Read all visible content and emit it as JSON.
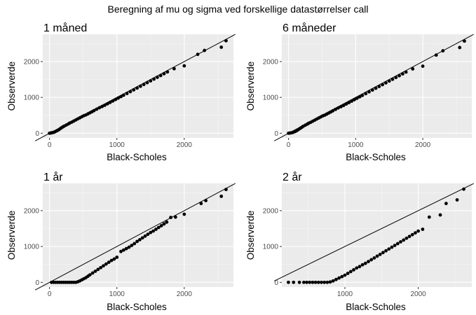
{
  "figure": {
    "title": "Beregning af mu og sigma ved forskellige datastørrelser call"
  },
  "chart_data": [
    {
      "type": "scatter",
      "title": "1 måned",
      "xlabel": "Black-Scholes",
      "ylabel": "Observerde",
      "xlim": [
        -100,
        2730
      ],
      "ylim": [
        -130,
        2760
      ],
      "xticks": [
        0,
        1000,
        2000
      ],
      "yticks": [
        0,
        1000,
        2000
      ],
      "reference_line": {
        "intercept": 0,
        "slope": 1
      },
      "grid": true,
      "x": [
        0,
        20,
        40,
        60,
        80,
        100,
        120,
        140,
        160,
        180,
        200,
        220,
        250,
        280,
        300,
        330,
        360,
        390,
        420,
        450,
        480,
        510,
        540,
        570,
        600,
        630,
        660,
        700,
        740,
        780,
        820,
        860,
        900,
        940,
        980,
        1020,
        1060,
        1100,
        1150,
        1200,
        1250,
        1300,
        1350,
        1400,
        1450,
        1500,
        1550,
        1600,
        1650,
        1700,
        1750,
        1850,
        2000,
        2200,
        2300,
        2550,
        2620
      ],
      "y": [
        0,
        8,
        15,
        25,
        40,
        60,
        80,
        100,
        130,
        155,
        180,
        200,
        230,
        260,
        285,
        310,
        340,
        370,
        400,
        430,
        460,
        490,
        510,
        540,
        570,
        600,
        630,
        670,
        710,
        745,
        780,
        820,
        860,
        900,
        940,
        980,
        1020,
        1060,
        1110,
        1160,
        1210,
        1260,
        1310,
        1360,
        1410,
        1460,
        1510,
        1560,
        1610,
        1660,
        1710,
        1800,
        1880,
        2200,
        2310,
        2400,
        2580
      ]
    },
    {
      "type": "scatter",
      "title": "6 måneder",
      "xlabel": "Black-Scholes",
      "ylabel": "Observerde",
      "xlim": [
        -100,
        2730
      ],
      "ylim": [
        -130,
        2760
      ],
      "xticks": [
        0,
        1000,
        2000
      ],
      "yticks": [
        0,
        1000,
        2000
      ],
      "reference_line": {
        "intercept": 0,
        "slope": 1
      },
      "grid": true,
      "x": [
        0,
        20,
        40,
        60,
        80,
        100,
        120,
        140,
        160,
        180,
        200,
        220,
        250,
        280,
        300,
        330,
        360,
        390,
        420,
        450,
        480,
        510,
        540,
        570,
        600,
        630,
        660,
        700,
        740,
        780,
        820,
        860,
        900,
        940,
        980,
        1020,
        1060,
        1100,
        1150,
        1200,
        1250,
        1300,
        1350,
        1400,
        1450,
        1500,
        1550,
        1600,
        1650,
        1700,
        1750,
        1850,
        2000,
        2200,
        2300,
        2550,
        2620
      ],
      "y": [
        0,
        5,
        12,
        20,
        35,
        50,
        70,
        95,
        120,
        145,
        170,
        195,
        225,
        255,
        280,
        305,
        335,
        365,
        395,
        425,
        455,
        485,
        505,
        535,
        565,
        595,
        625,
        665,
        705,
        740,
        775,
        815,
        855,
        895,
        935,
        975,
        1015,
        1055,
        1105,
        1155,
        1205,
        1255,
        1305,
        1355,
        1405,
        1455,
        1505,
        1555,
        1605,
        1655,
        1705,
        1795,
        1870,
        2180,
        2300,
        2390,
        2570
      ]
    },
    {
      "type": "scatter",
      "title": "1 år",
      "xlabel": "Black-Scholes",
      "ylabel": "Observerde",
      "xlim": [
        -100,
        2730
      ],
      "ylim": [
        -130,
        2760
      ],
      "xticks": [
        0,
        1000,
        2000
      ],
      "yticks": [
        0,
        1000,
        2000
      ],
      "reference_line": {
        "intercept": 0,
        "slope": 1
      },
      "grid": true,
      "x": [
        30,
        60,
        90,
        120,
        150,
        180,
        210,
        240,
        270,
        300,
        330,
        360,
        390,
        420,
        450,
        480,
        510,
        540,
        570,
        600,
        640,
        680,
        720,
        760,
        800,
        840,
        880,
        920,
        960,
        1000,
        1060,
        1100,
        1140,
        1180,
        1220,
        1260,
        1300,
        1340,
        1380,
        1420,
        1460,
        1500,
        1540,
        1580,
        1620,
        1660,
        1700,
        1740,
        1800,
        1870,
        2000,
        2250,
        2320,
        2550,
        2620
      ],
      "y": [
        0,
        0,
        0,
        0,
        0,
        0,
        0,
        0,
        0,
        0,
        0,
        0,
        0,
        15,
        40,
        70,
        100,
        130,
        170,
        210,
        260,
        310,
        360,
        410,
        460,
        510,
        560,
        610,
        650,
        700,
        860,
        900,
        940,
        980,
        1030,
        1080,
        1140,
        1190,
        1240,
        1290,
        1340,
        1390,
        1430,
        1480,
        1530,
        1580,
        1630,
        1680,
        1810,
        1820,
        1900,
        2200,
        2280,
        2400,
        2590
      ]
    },
    {
      "type": "scatter",
      "title": "2 år",
      "xlabel": "Black-Scholes",
      "ylabel": "Observerde",
      "xlim": [
        140,
        2730
      ],
      "ylim": [
        -130,
        2760
      ],
      "xticks": [
        1000,
        2000
      ],
      "yticks": [
        0,
        1000,
        2000
      ],
      "reference_line": {
        "intercept": 0,
        "slope": 1
      },
      "grid": true,
      "x": [
        230,
        300,
        380,
        440,
        480,
        520,
        560,
        600,
        640,
        680,
        720,
        760,
        800,
        840,
        880,
        920,
        960,
        1000,
        1040,
        1080,
        1120,
        1160,
        1200,
        1240,
        1280,
        1320,
        1360,
        1400,
        1440,
        1480,
        1520,
        1560,
        1600,
        1640,
        1680,
        1720,
        1760,
        1800,
        1840,
        1880,
        1920,
        1960,
        2000,
        2060,
        2150,
        2300,
        2380,
        2530,
        2620
      ],
      "y": [
        0,
        0,
        0,
        0,
        0,
        0,
        0,
        0,
        0,
        0,
        0,
        0,
        10,
        40,
        80,
        120,
        160,
        200,
        250,
        300,
        350,
        400,
        440,
        490,
        530,
        580,
        630,
        680,
        730,
        780,
        830,
        880,
        930,
        980,
        1030,
        1080,
        1130,
        1180,
        1230,
        1280,
        1330,
        1380,
        1430,
        1480,
        1820,
        1880,
        2200,
        2300,
        2600
      ]
    }
  ]
}
